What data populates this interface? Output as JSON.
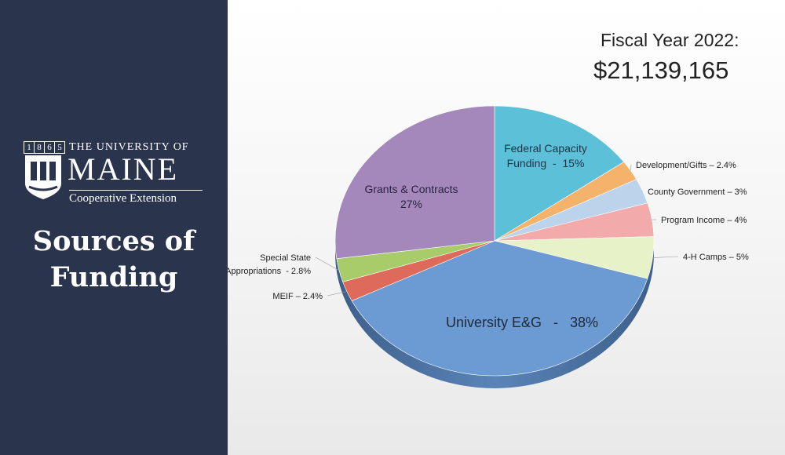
{
  "sidebar": {
    "logo": {
      "year_digits": [
        "1",
        "8",
        "6",
        "5"
      ],
      "university_of": "THE UNIVERSITY OF",
      "maine": "MAINE",
      "unit": "Cooperative Extension"
    },
    "headline": {
      "line1": "Sources of",
      "line2": "Funding"
    }
  },
  "header": {
    "fiscal_year_label": "Fiscal Year 2022:",
    "total": "$21,139,165"
  },
  "chart_data": {
    "type": "pie",
    "slices": [
      {
        "id": "federal",
        "label_lines": [
          "Federal Capacity",
          "Funding  -  15%"
        ],
        "value": 15,
        "color": "#5bc0d8"
      },
      {
        "id": "development",
        "label_lines": [
          "Development/Gifts – 2.4%"
        ],
        "value": 2.4,
        "color": "#f5b26b"
      },
      {
        "id": "county",
        "label_lines": [
          "County Government – 3%"
        ],
        "value": 3,
        "color": "#bcd3ec"
      },
      {
        "id": "program",
        "label_lines": [
          "Program Income – 4%"
        ],
        "value": 4,
        "color": "#f2aaaa"
      },
      {
        "id": "camps",
        "label_lines": [
          "4-H Camps – 5%"
        ],
        "value": 5,
        "color": "#e7f2c9"
      },
      {
        "id": "university",
        "label_lines": [
          "University E&G   -   38%"
        ],
        "value": 38,
        "color": "#6b9bd2"
      },
      {
        "id": "meif",
        "label_lines": [
          "MEIF – 2.4%"
        ],
        "value": 2.4,
        "color": "#de6a5b"
      },
      {
        "id": "special",
        "label_lines": [
          "Special State",
          "Appropriations  - 2.8%"
        ],
        "value": 2.8,
        "color": "#a8cc6a"
      },
      {
        "id": "grants",
        "label_lines": [
          "Grants & Contracts",
          "27%"
        ],
        "value": 27,
        "color": "#a488bc"
      }
    ]
  }
}
